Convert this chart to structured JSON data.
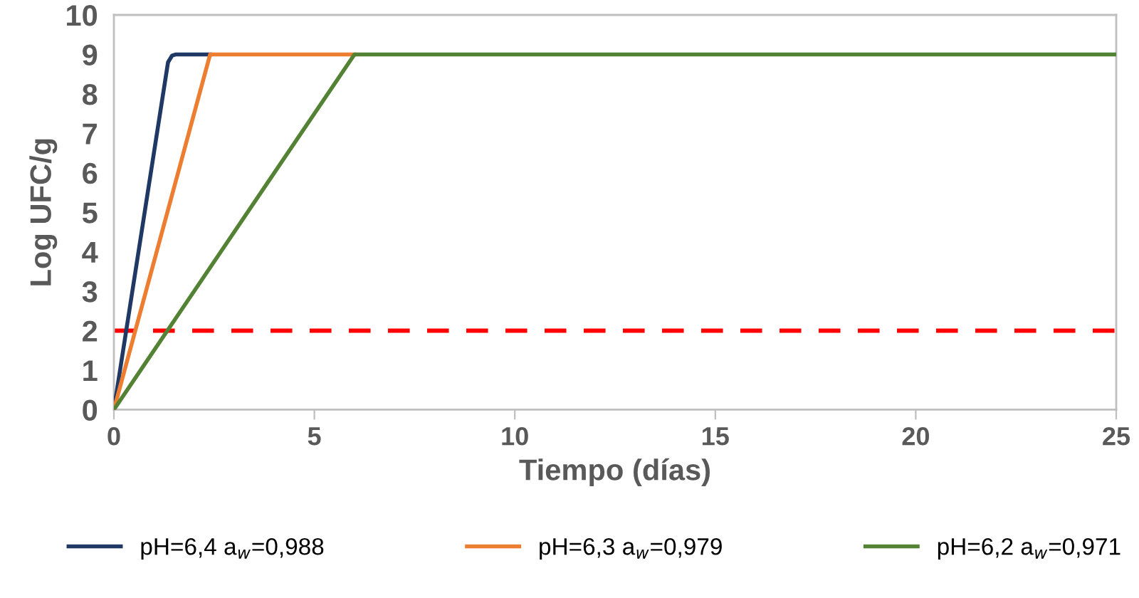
{
  "chart_data": {
    "type": "line",
    "xlabel": "Tiempo (días)",
    "ylabel": "Log UFC/g",
    "xlim": [
      0,
      25
    ],
    "xticks": [
      0,
      5,
      10,
      15,
      20,
      25
    ],
    "ylim": [
      0,
      10
    ],
    "yticks": [
      0,
      1,
      2,
      3,
      4,
      5,
      6,
      7,
      8,
      9,
      10
    ],
    "grid": false,
    "legend": "bottom",
    "marker": "none",
    "line_style": "solid",
    "series": [
      {
        "name": "pH=6,4 a$_{w}$=0,988",
        "color": "#1f3864",
        "x": [
          0,
          1.35,
          1.45,
          1.55,
          2.4
        ],
        "values": [
          0,
          8.8,
          8.97,
          9,
          9
        ]
      },
      {
        "name": "pH=6,3 a$_{w}$=0,979",
        "color": "#ed7d31",
        "x": [
          0,
          2.4,
          6.0
        ],
        "values": [
          0,
          9,
          9
        ]
      },
      {
        "name": "pH=6,2 a$_{w}$=0,971",
        "color": "#548235",
        "x": [
          0,
          6.0,
          25
        ],
        "values": [
          0,
          9,
          9
        ]
      }
    ],
    "ref_lines": [
      {
        "axis": "y",
        "value": 2,
        "color": "#ff0000",
        "line_style": "dashed"
      }
    ]
  }
}
